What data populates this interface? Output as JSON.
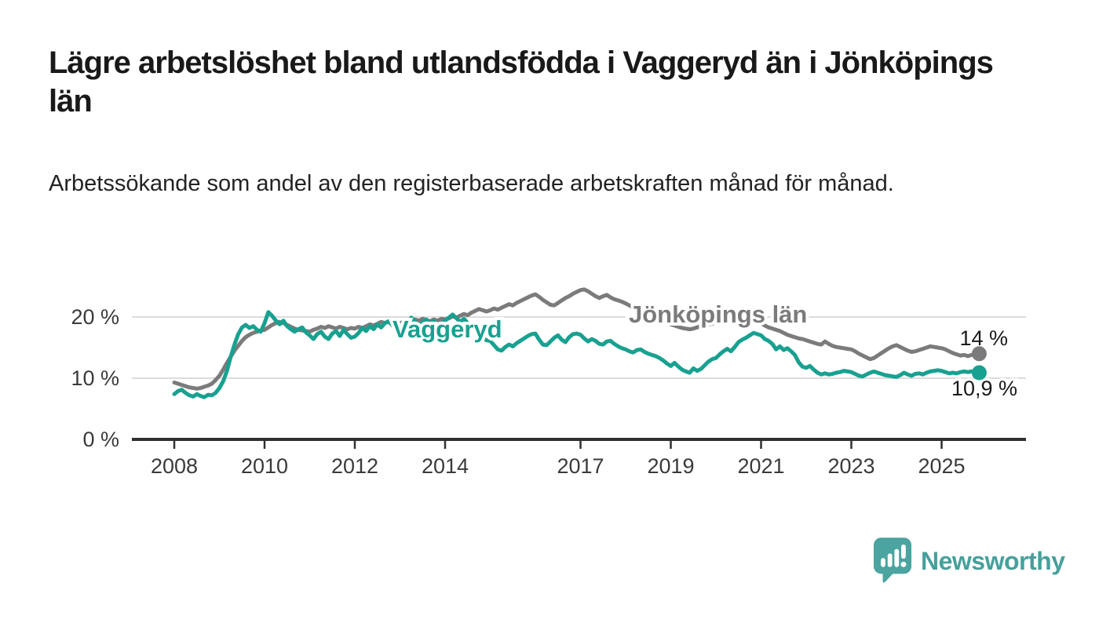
{
  "header": {
    "title": "Lägre arbetslöshet bland utlandsfödda i Vaggeryd än i Jönköpings län",
    "subtitle": "Arbetssökande som andel av den registerbaserade arbetskraften månad för månad."
  },
  "branding": {
    "name": "Newsworthy",
    "color": "#46a09b",
    "logo_color": "#4ba49f"
  },
  "chart_data": {
    "type": "line",
    "x_unit": "month",
    "x_start": "2008-01",
    "x_end": "2025-11",
    "x_ticks": [
      2008,
      2010,
      2012,
      2014,
      2017,
      2019,
      2021,
      2023,
      2025
    ],
    "y_ticks": [
      0,
      10,
      20
    ],
    "y_tick_suffix": " %",
    "ylim": [
      0,
      26
    ],
    "grid": "horizontal",
    "grid_color": "#dcdcdc",
    "axis_color": "#303030",
    "series": [
      {
        "name": "Jönköpings län",
        "color": "#7b7b7b",
        "end_label": "14 %",
        "values": [
          9.3,
          9.1,
          8.9,
          8.7,
          8.5,
          8.4,
          8.3,
          8.4,
          8.6,
          8.8,
          9.1,
          9.7,
          10.4,
          11.4,
          12.5,
          13.5,
          14.5,
          15.3,
          16.1,
          16.7,
          17.1,
          17.4,
          17.6,
          17.8,
          17.9,
          18.3,
          18.7,
          19.0,
          19.2,
          19.0,
          18.7,
          18.4,
          18.1,
          17.9,
          17.8,
          17.7,
          17.6,
          17.9,
          18.1,
          18.4,
          18.2,
          18.5,
          18.3,
          18.1,
          18.4,
          18.2,
          18.0,
          18.2,
          18.1,
          18.4,
          18.2,
          18.5,
          18.8,
          18.6,
          18.9,
          19.2,
          19.0,
          19.3,
          19.1,
          19.3,
          19.0,
          19.2,
          19.5,
          19.3,
          19.6,
          19.4,
          19.7,
          19.5,
          19.3,
          19.6,
          19.4,
          19.7,
          19.6,
          19.8,
          20.1,
          19.9,
          20.2,
          20.5,
          20.3,
          20.7,
          21.0,
          21.3,
          21.1,
          20.9,
          21.1,
          21.4,
          21.2,
          21.5,
          21.8,
          22.1,
          21.9,
          22.3,
          22.6,
          22.9,
          23.2,
          23.5,
          23.7,
          23.3,
          22.8,
          22.4,
          22.0,
          21.9,
          22.3,
          22.7,
          23.1,
          23.4,
          23.8,
          24.1,
          24.4,
          24.5,
          24.2,
          23.8,
          23.4,
          23.1,
          23.4,
          23.6,
          23.2,
          22.9,
          22.7,
          22.5,
          22.2,
          21.9,
          21.5,
          21.2,
          20.9,
          20.6,
          20.3,
          20.0,
          19.7,
          19.4,
          19.2,
          19.0,
          18.8,
          18.6,
          18.4,
          18.2,
          18.1,
          18.0,
          18.1,
          18.3,
          18.5,
          18.7,
          18.8,
          18.9,
          19.1,
          19.4,
          19.7,
          20.1,
          20.3,
          20.4,
          20.3,
          20.1,
          19.9,
          19.7,
          19.4,
          19.2,
          19.0,
          18.6,
          18.3,
          18.1,
          17.9,
          17.7,
          17.4,
          17.1,
          16.9,
          16.7,
          16.5,
          16.4,
          16.2,
          16.0,
          15.8,
          15.6,
          15.5,
          16.0,
          15.6,
          15.3,
          15.1,
          15.0,
          14.9,
          14.8,
          14.7,
          14.4,
          14.0,
          13.7,
          13.4,
          13.1,
          13.3,
          13.7,
          14.1,
          14.5,
          14.9,
          15.2,
          15.4,
          15.1,
          14.8,
          14.5,
          14.3,
          14.4,
          14.6,
          14.8,
          15.0,
          15.2,
          15.1,
          15.0,
          14.9,
          14.7,
          14.4,
          14.1,
          13.9,
          13.7,
          13.8,
          13.6,
          13.8,
          13.9,
          14.0
        ]
      },
      {
        "name": "Vaggeryd",
        "color": "#18a190",
        "end_label": "10,9 %",
        "values": [
          7.4,
          7.9,
          8.1,
          7.6,
          7.2,
          7.0,
          7.4,
          7.1,
          6.9,
          7.3,
          7.2,
          7.6,
          8.4,
          9.5,
          11.2,
          13.5,
          15.5,
          17.2,
          18.3,
          18.7,
          18.2,
          18.5,
          17.9,
          17.6,
          19.0,
          20.8,
          20.2,
          19.4,
          18.8,
          19.4,
          18.5,
          18.0,
          17.6,
          18.0,
          18.3,
          17.5,
          17.0,
          16.4,
          17.2,
          17.6,
          16.8,
          16.4,
          17.3,
          17.7,
          16.9,
          17.9,
          17.2,
          16.6,
          16.8,
          17.4,
          18.2,
          17.7,
          18.5,
          18.0,
          18.8,
          18.3,
          19.0,
          19.3,
          18.6,
          17.9,
          17.6,
          18.2,
          18.9,
          19.9,
          19.2,
          18.6,
          19.1,
          19.6,
          18.9,
          19.3,
          18.6,
          19.0,
          19.4,
          19.9,
          20.4,
          19.8,
          19.2,
          19.7,
          19.0,
          18.4,
          17.8,
          17.2,
          16.6,
          16.2,
          16.1,
          15.4,
          14.7,
          14.5,
          15.1,
          15.5,
          15.2,
          15.7,
          16.1,
          16.5,
          16.9,
          17.2,
          17.3,
          16.3,
          15.5,
          15.4,
          16.0,
          16.6,
          17.0,
          16.3,
          15.9,
          16.7,
          17.2,
          17.3,
          17.1,
          16.5,
          16.0,
          16.4,
          16.1,
          15.6,
          15.5,
          16.0,
          16.1,
          15.6,
          15.2,
          14.9,
          14.7,
          14.4,
          14.2,
          14.6,
          14.7,
          14.3,
          14.0,
          13.8,
          13.6,
          13.3,
          12.9,
          12.4,
          12.0,
          12.5,
          11.9,
          11.4,
          11.1,
          10.9,
          11.6,
          11.2,
          11.5,
          12.1,
          12.7,
          13.1,
          13.3,
          13.9,
          14.4,
          14.8,
          14.4,
          15.1,
          15.9,
          16.3,
          16.6,
          17.0,
          17.4,
          17.2,
          17.0,
          16.4,
          16.1,
          15.6,
          14.7,
          15.2,
          14.6,
          14.9,
          14.4,
          13.8,
          12.6,
          11.9,
          11.7,
          12.0,
          11.4,
          10.9,
          10.6,
          10.8,
          10.6,
          10.7,
          10.9,
          11.0,
          11.2,
          11.1,
          11.0,
          10.7,
          10.4,
          10.3,
          10.6,
          10.9,
          11.1,
          10.9,
          10.7,
          10.5,
          10.4,
          10.3,
          10.2,
          10.5,
          10.9,
          10.6,
          10.4,
          10.7,
          10.8,
          10.6,
          10.9,
          11.1,
          11.2,
          11.3,
          11.2,
          11.0,
          10.8,
          10.9,
          10.8,
          11.0,
          11.1,
          11.0,
          11.1,
          11.0,
          10.9
        ]
      }
    ]
  }
}
